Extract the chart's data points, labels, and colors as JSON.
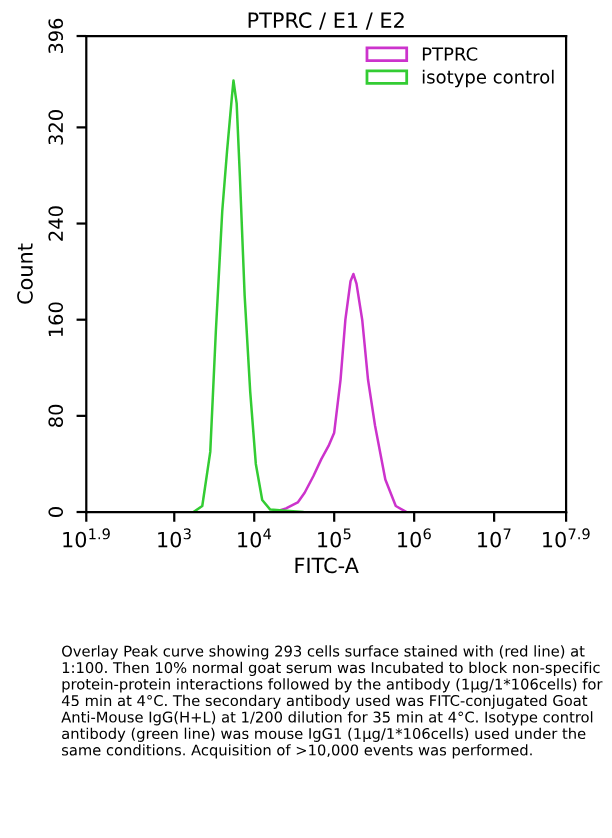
{
  "chart_data": {
    "type": "line",
    "title": "PTPRC / E1 / E2",
    "xlabel": "FITC-A",
    "ylabel": "Count",
    "log": "x",
    "xlim": [
      79.43,
      79430000
    ],
    "ylim": [
      0,
      396
    ],
    "xticks": [
      {
        "value": 79.43,
        "label": "10$^{1.9}$"
      },
      {
        "value": 1000,
        "label": "10$^{3}$"
      },
      {
        "value": 10000,
        "label": "10$^{4}$"
      },
      {
        "value": 100000,
        "label": "10$^{5}$"
      },
      {
        "value": 1000000,
        "label": "10$^{6}$"
      },
      {
        "value": 10000000,
        "label": "10$^{7}$"
      },
      {
        "value": 79430000,
        "label": "10$^{7.9}$"
      }
    ],
    "yticks": [
      0,
      80,
      160,
      240,
      320,
      396
    ],
    "grid": false,
    "legend": "top right",
    "marker": "none",
    "line_style": "solid",
    "series": [
      {
        "name": "PTPRC",
        "color": "#cc33cc",
        "x": [
          17800,
          25000,
          35000,
          42700,
          55000,
          69000,
          85000,
          100000,
          120000,
          138000,
          160000,
          174000,
          190000,
          224000,
          265000,
          324000,
          436000,
          589000,
          800000
        ],
        "values": [
          0,
          3,
          8,
          16,
          30,
          44,
          55,
          66,
          110,
          160,
          192,
          198,
          190,
          160,
          110,
          72,
          27,
          5,
          0
        ]
      },
      {
        "name": "isotype control",
        "color": "#33cc33",
        "x": [
          1738,
          2240,
          2820,
          3310,
          3980,
          4570,
          5250,
          5500,
          6030,
          6610,
          7590,
          8910,
          10470,
          12590,
          15850,
          25000,
          40000
        ],
        "values": [
          0,
          5,
          50,
          150,
          250,
          300,
          345,
          359,
          340,
          280,
          180,
          100,
          40,
          10,
          2,
          1,
          0
        ]
      }
    ],
    "annotations": [
      "Overlay Peak curve showing 293 cells surface stained with (red line) at 1:100. Then 10% normal goat serum was Incubated to block non-specific protein-protein interactions followed by the antibody (1µg/1*106cells) for 45 min at 4°C. The secondary antibody used was FITC-conjugated Goat Anti-Mouse IgG(H+L) at 1/200 dilution for 35 min at 4°C. Isotype control antibody (green line) was mouse IgG1 (1µg/1*106cells) used under the same conditions. Acquisition of >10,000 events was performed."
    ]
  }
}
